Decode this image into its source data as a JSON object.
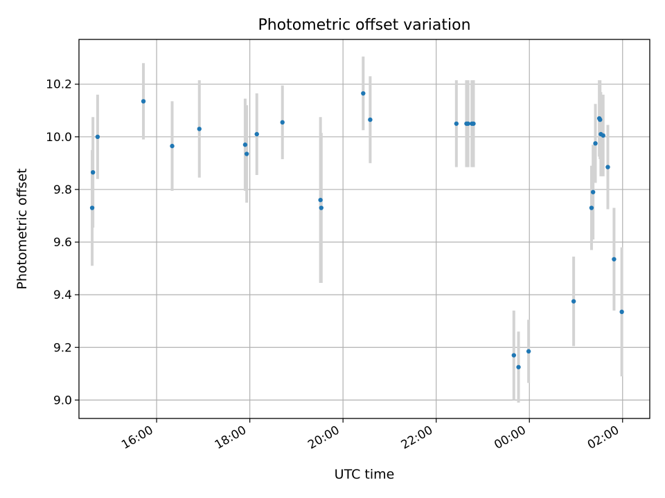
{
  "chart_data": {
    "type": "scatter",
    "title": "Photometric offset variation",
    "xlabel": "UTC time",
    "ylabel": "Photometric offset",
    "x_unit": "time of day (UTC), spanning into next day",
    "xlim": [
      "14:20",
      "02:35 (+1 day)"
    ],
    "ylim": [
      8.93,
      10.37
    ],
    "x_ticks": [
      "16:00",
      "18:00",
      "20:00",
      "22:00",
      "00:00",
      "02:00"
    ],
    "y_ticks": [
      9.0,
      9.2,
      9.4,
      9.6,
      9.8,
      10.0,
      10.2
    ],
    "grid": true,
    "colors": {
      "points": "#1f77b4",
      "error_bars": "#d3d3d3"
    },
    "series": [
      {
        "points": [
          {
            "x": "14:37",
            "y": 9.73,
            "err": 0.22
          },
          {
            "x": "14:38",
            "y": 9.865,
            "err": 0.21
          },
          {
            "x": "14:44",
            "y": 10.0,
            "err": 0.16
          },
          {
            "x": "15:43",
            "y": 10.135,
            "err": 0.145
          },
          {
            "x": "16:20",
            "y": 9.965,
            "err": 0.17
          },
          {
            "x": "16:55",
            "y": 10.03,
            "err": 0.185
          },
          {
            "x": "17:54",
            "y": 9.97,
            "err": 0.175
          },
          {
            "x": "17:56",
            "y": 9.935,
            "err": 0.185
          },
          {
            "x": "18:09",
            "y": 10.01,
            "err": 0.155
          },
          {
            "x": "18:42",
            "y": 10.055,
            "err": 0.14
          },
          {
            "x": "19:31",
            "y": 9.76,
            "err": 0.315
          },
          {
            "x": "19:32",
            "y": 9.73,
            "err": 0.285
          },
          {
            "x": "20:26",
            "y": 10.165,
            "err": 0.14
          },
          {
            "x": "20:35",
            "y": 10.065,
            "err": 0.165
          },
          {
            "x": "22:26",
            "y": 10.05,
            "err": 0.165
          },
          {
            "x": "22:39",
            "y": 10.05,
            "err": 0.165
          },
          {
            "x": "22:41",
            "y": 10.05,
            "err": 0.165
          },
          {
            "x": "22:46",
            "y": 10.05,
            "err": 0.165
          },
          {
            "x": "22:48",
            "y": 10.05,
            "err": 0.165
          },
          {
            "x": "23:40",
            "y": 9.17,
            "err": 0.17
          },
          {
            "x": "23:46",
            "y": 9.125,
            "err": 0.135
          },
          {
            "x": "23:59",
            "y": 9.185,
            "err": 0.12
          },
          {
            "x": "00:57",
            "y": 9.375,
            "err": 0.17
          },
          {
            "x": "01:20",
            "y": 9.73,
            "err": 0.16
          },
          {
            "x": "01:22",
            "y": 9.79,
            "err": 0.18
          },
          {
            "x": "01:25",
            "y": 9.975,
            "err": 0.15
          },
          {
            "x": "01:30",
            "y": 10.07,
            "err": 0.145
          },
          {
            "x": "01:31",
            "y": 10.065,
            "err": 0.15
          },
          {
            "x": "01:32",
            "y": 10.01,
            "err": 0.16
          },
          {
            "x": "01:35",
            "y": 10.005,
            "err": 0.155
          },
          {
            "x": "01:41",
            "y": 9.885,
            "err": 0.16
          },
          {
            "x": "01:49",
            "y": 9.535,
            "err": 0.195
          },
          {
            "x": "01:59",
            "y": 9.335,
            "err": 0.245
          }
        ]
      }
    ]
  }
}
